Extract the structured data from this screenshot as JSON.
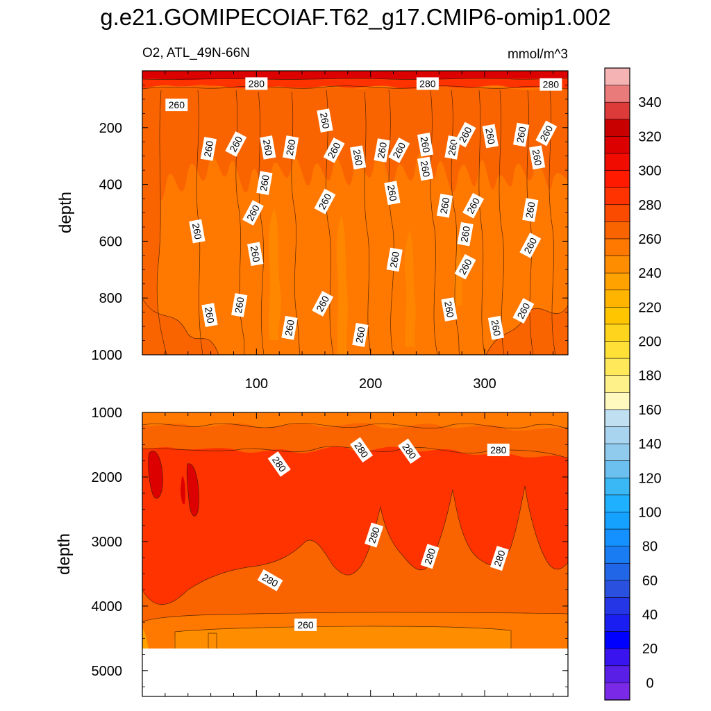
{
  "title": "g.e21.GOMIPECOIAF.T62_g17.CMIP6-omip1.002",
  "chart_data": [
    {
      "type": "contour",
      "panel": "upper",
      "left_label": "O2, ATL_49N-66N",
      "right_label": "mmol/m^3",
      "ylabel": "depth",
      "xlabel": "",
      "xlim": [
        0,
        373
      ],
      "ylim": [
        1000,
        0
      ],
      "x_ticks": [
        100,
        200,
        300
      ],
      "y_ticks": [
        200,
        400,
        600,
        800,
        1000
      ],
      "contour_labels": [
        {
          "text": "280",
          "x": 100,
          "y": 45
        },
        {
          "text": "280",
          "x": 250,
          "y": 45
        },
        {
          "text": "280",
          "x": 358,
          "y": 48
        },
        {
          "text": "260",
          "x": 30,
          "y": 120
        },
        {
          "text": "260",
          "x": 160,
          "y": 175
        },
        {
          "text": "260",
          "x": 58,
          "y": 275
        },
        {
          "text": "260",
          "x": 82,
          "y": 258
        },
        {
          "text": "260",
          "x": 110,
          "y": 270
        },
        {
          "text": "260",
          "x": 130,
          "y": 270
        },
        {
          "text": "260",
          "x": 168,
          "y": 280
        },
        {
          "text": "260",
          "x": 189,
          "y": 305
        },
        {
          "text": "260",
          "x": 210,
          "y": 280
        },
        {
          "text": "260",
          "x": 225,
          "y": 280
        },
        {
          "text": "260",
          "x": 248,
          "y": 260
        },
        {
          "text": "260",
          "x": 272,
          "y": 270
        },
        {
          "text": "260",
          "x": 283,
          "y": 225
        },
        {
          "text": "260",
          "x": 305,
          "y": 230
        },
        {
          "text": "260",
          "x": 332,
          "y": 225
        },
        {
          "text": "260",
          "x": 354,
          "y": 220
        },
        {
          "text": "260",
          "x": 248,
          "y": 345
        },
        {
          "text": "260",
          "x": 107,
          "y": 395
        },
        {
          "text": "260",
          "x": 160,
          "y": 460
        },
        {
          "text": "260",
          "x": 219,
          "y": 430
        },
        {
          "text": "260",
          "x": 265,
          "y": 475
        },
        {
          "text": "260",
          "x": 290,
          "y": 475
        },
        {
          "text": "260",
          "x": 346,
          "y": 305
        },
        {
          "text": "260",
          "x": 340,
          "y": 490
        },
        {
          "text": "260",
          "x": 97,
          "y": 500
        },
        {
          "text": "260",
          "x": 48,
          "y": 565
        },
        {
          "text": "260",
          "x": 283,
          "y": 575
        },
        {
          "text": "260",
          "x": 340,
          "y": 615
        },
        {
          "text": "260",
          "x": 99,
          "y": 645
        },
        {
          "text": "260",
          "x": 221,
          "y": 665
        },
        {
          "text": "260",
          "x": 283,
          "y": 690
        },
        {
          "text": "260",
          "x": 59,
          "y": 860
        },
        {
          "text": "260",
          "x": 85,
          "y": 825
        },
        {
          "text": "260",
          "x": 158,
          "y": 820
        },
        {
          "text": "260",
          "x": 269,
          "y": 840
        },
        {
          "text": "260",
          "x": 129,
          "y": 905
        },
        {
          "text": "260",
          "x": 334,
          "y": 845
        },
        {
          "text": "260",
          "x": 310,
          "y": 905
        },
        {
          "text": "260",
          "x": 191,
          "y": 930
        }
      ]
    },
    {
      "type": "contour",
      "panel": "lower",
      "ylabel": "depth",
      "xlabel": "",
      "xlim": [
        0,
        373
      ],
      "ylim": [
        5400,
        1000
      ],
      "y_ticks": [
        1000,
        2000,
        3000,
        4000,
        5000
      ],
      "contour_labels": [
        {
          "text": "280",
          "x": 120,
          "y": 1800
        },
        {
          "text": "280",
          "x": 192,
          "y": 1580
        },
        {
          "text": "280",
          "x": 234,
          "y": 1600
        },
        {
          "text": "280",
          "x": 312,
          "y": 1580
        },
        {
          "text": "280",
          "x": 203,
          "y": 2900
        },
        {
          "text": "280",
          "x": 252,
          "y": 3230
        },
        {
          "text": "280",
          "x": 313,
          "y": 3260
        },
        {
          "text": "280",
          "x": 112,
          "y": 3600
        },
        {
          "text": "260",
          "x": 143,
          "y": 4290
        }
      ]
    }
  ],
  "colorbar": {
    "labels": [
      "340",
      "320",
      "300",
      "280",
      "260",
      "240",
      "220",
      "200",
      "180",
      "160",
      "140",
      "120",
      "100",
      "80",
      "60",
      "40",
      "20",
      "0"
    ],
    "colors_top_to_bottom": [
      "#f6b3b3",
      "#ea7b7b",
      "#dd3a3a",
      "#c80000",
      "#dd0000",
      "#f00c00",
      "#ff1a00",
      "#ff3300",
      "#fa4b00",
      "#fa6400",
      "#ff7800",
      "#ff8d00",
      "#ffa200",
      "#ffb400",
      "#ffc600",
      "#ffd41c",
      "#ffe036",
      "#ffe95a",
      "#fff18a",
      "#fff9c0",
      "#c0e0f2",
      "#a8d4ef",
      "#90cbee",
      "#6cc0ef",
      "#3ab8f6",
      "#1fb0ff",
      "#15a2ff",
      "#1490ff",
      "#1a7cf2",
      "#2266e8",
      "#2a50e0",
      "#2436e6",
      "#1a1ef0",
      "#0000ff",
      "#3a14ee",
      "#5a1fe6",
      "#7a2ae6"
    ]
  }
}
